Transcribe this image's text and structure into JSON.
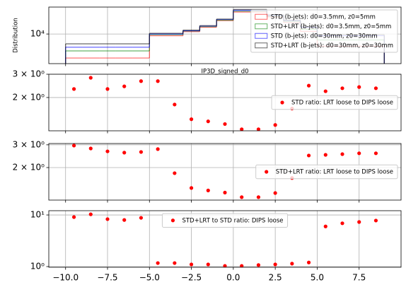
{
  "chart_data": [
    {
      "type": "histogram",
      "ylabel": "Distribution",
      "xlabel": "IP3D_signed_d0",
      "bins": [
        -10,
        -9,
        -8,
        -7,
        -6,
        -5,
        -4,
        -3,
        -2,
        -1,
        0,
        1,
        2,
        3,
        4,
        5,
        6,
        7,
        8,
        9
      ],
      "series": [
        {
          "name": "STD (b-jets): d0=3.5mm, z0=5mm",
          "color": "#ff0000",
          "values": [
            4950,
            4950,
            4950,
            4950,
            4950,
            9500,
            9500,
            10700,
            12200,
            14800,
            19000,
            19000,
            16500,
            14000,
            10800,
            7000,
            7000,
            7000,
            7000
          ]
        },
        {
          "name": "STD+LRT (b-jets): d0=3.5mm, z0=5mm",
          "color": "#008000",
          "values": [
            6100,
            6100,
            6100,
            6100,
            6100,
            9800,
            9800,
            10900,
            12400,
            15000,
            19500,
            19500,
            16800,
            14500,
            11500,
            8400,
            8400,
            8400,
            8400
          ]
        },
        {
          "name": "STD (b-jets): d0=30mm, z0=30mm",
          "color": "#0000ff",
          "values": [
            6800,
            6800,
            6800,
            6800,
            6800,
            10000,
            10000,
            11000,
            12600,
            15300,
            20000,
            20000,
            17200,
            14800,
            12200,
            9500,
            9500,
            9500,
            9500
          ]
        },
        {
          "name": "STD+LRT (b-jets): d0=30mm, z0=30mm",
          "color": "#000000",
          "values": [
            7500,
            7500,
            7500,
            7500,
            7500,
            10200,
            10200,
            11200,
            12800,
            15500,
            20500,
            20500,
            17500,
            15000,
            12500,
            9800,
            9800,
            9800,
            9800
          ]
        }
      ],
      "xlim": [
        -11,
        10
      ],
      "xticks": [
        -10,
        -7.5,
        -5,
        -2.5,
        0,
        2.5,
        5,
        7.5
      ],
      "xticklabels": false,
      "ylim": [
        4200,
        22000
      ],
      "yticks": [
        {
          "value": 10000,
          "label": "10⁴"
        }
      ],
      "yscale": "log",
      "grid": true,
      "legend": "upper right"
    },
    {
      "type": "scatter",
      "x": [
        -9.5,
        -8.5,
        -7.5,
        -6.5,
        -5.5,
        -4.5,
        -3.5,
        -2.5,
        -1.5,
        -0.5,
        0.5,
        1.5,
        2.5,
        3.5,
        4.5,
        5.5,
        6.5,
        7.5,
        8.5
      ],
      "series": [
        {
          "name": "STD ratio: LRT loose to DIPS loose",
          "color": "#ff0000",
          "values": [
            2.32,
            2.82,
            2.32,
            2.43,
            2.66,
            2.66,
            1.77,
            1.37,
            1.32,
            1.26,
            1.15,
            1.15,
            1.24,
            1.65,
            2.46,
            2.23,
            2.35,
            2.4,
            2.35
          ]
        }
      ],
      "xlim": [
        -11,
        10
      ],
      "xticks": [
        -10,
        -7.5,
        -5,
        -2.5,
        0,
        2.5,
        5,
        7.5
      ],
      "xticklabels": false,
      "ylim": [
        1.12,
        3.0
      ],
      "yticks": [
        {
          "value": 2,
          "label": "2 × 10⁰"
        },
        {
          "value": 3,
          "label": "3 × 10⁰"
        }
      ],
      "yscale": "log",
      "grid": true,
      "legend": "center right"
    },
    {
      "type": "scatter",
      "x": [
        -9.5,
        -8.5,
        -7.5,
        -6.5,
        -5.5,
        -4.5,
        -3.5,
        -2.5,
        -1.5,
        -0.5,
        0.5,
        1.5,
        2.5,
        3.5,
        4.5,
        5.5,
        6.5,
        7.5,
        8.5
      ],
      "series": [
        {
          "name": "STD+LRT ratio: LRT loose to DIPS loose",
          "color": "#ff0000",
          "values": [
            2.96,
            2.81,
            2.67,
            2.61,
            2.64,
            2.78,
            1.81,
            1.39,
            1.33,
            1.28,
            1.18,
            1.18,
            1.27,
            1.66,
            2.48,
            2.51,
            2.54,
            2.58,
            2.58
          ]
        }
      ],
      "xlim": [
        -11,
        10
      ],
      "xticks": [
        -10,
        -7.5,
        -5,
        -2.5,
        0,
        2.5,
        5,
        7.5
      ],
      "xticklabels": false,
      "ylim": [
        1.12,
        3.07
      ],
      "yticks": [
        {
          "value": 2,
          "label": "2 × 10⁰"
        },
        {
          "value": 3,
          "label": "3 × 10⁰"
        }
      ],
      "yscale": "log",
      "grid": true,
      "legend": "center right"
    },
    {
      "type": "scatter",
      "x": [
        -9.5,
        -8.5,
        -7.5,
        -6.5,
        -5.5,
        -4.5,
        -3.5,
        -2.5,
        -1.5,
        -0.5,
        0.5,
        1.5,
        2.5,
        3.5,
        4.5,
        5.5,
        6.5,
        7.5,
        8.5
      ],
      "series": [
        {
          "name": "STD+LRT to STD ratio: DIPS loose",
          "color": "#ff0000",
          "values": [
            9.1,
            10.3,
            8.3,
            8.0,
            8.8,
            1.17,
            1.17,
            1.1,
            1.1,
            1.03,
            1.03,
            1.07,
            1.1,
            1.14,
            1.2,
            6.0,
            6.9,
            7.3,
            7.8
          ]
        }
      ],
      "xlim": [
        -11,
        10
      ],
      "xticks": [
        {
          "value": -10,
          "label": "−10.0"
        },
        {
          "value": -7.5,
          "label": "−7.5"
        },
        {
          "value": -5,
          "label": "−5.0"
        },
        {
          "value": -2.5,
          "label": "−2.5"
        },
        {
          "value": 0,
          "label": "0.0"
        },
        {
          "value": 2.5,
          "label": "2.5"
        },
        {
          "value": 5,
          "label": "5.0"
        },
        {
          "value": 7.5,
          "label": "7.5"
        }
      ],
      "ylim": [
        0.97,
        12.1
      ],
      "yticks": [
        {
          "value": 1,
          "label": "10⁰"
        },
        {
          "value": 10,
          "label": "10¹"
        }
      ],
      "yscale": "log",
      "grid": true,
      "legend": "upper center"
    }
  ]
}
